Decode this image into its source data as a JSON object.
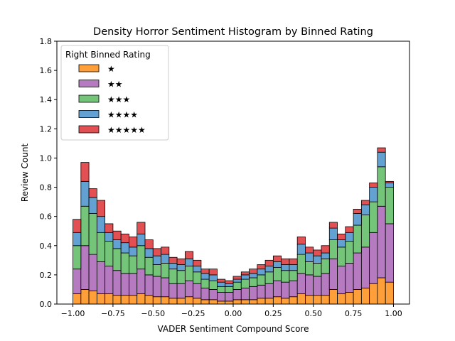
{
  "chart_data": {
    "type": "bar",
    "stacked": true,
    "title": "Density Horror Sentiment Histogram by Binned Rating",
    "xlabel": "VADER Sentiment Compound Score",
    "ylabel": "Review Count",
    "xlim": [
      -1.1,
      1.1
    ],
    "ylim": [
      0,
      1.8
    ],
    "xticks": [
      -1.0,
      -0.75,
      -0.5,
      -0.25,
      0.0,
      0.25,
      0.5,
      0.75,
      1.0
    ],
    "xtick_labels": [
      "−1.00",
      "−0.75",
      "−0.50",
      "−0.25",
      "0.00",
      "0.25",
      "0.50",
      "0.75",
      "1.00"
    ],
    "yticks": [
      0.0,
      0.2,
      0.4,
      0.6,
      0.8,
      1.0,
      1.2,
      1.4,
      1.6,
      1.8
    ],
    "ytick_labels": [
      "0.0",
      "0.2",
      "0.4",
      "0.6",
      "0.8",
      "1.0",
      "1.2",
      "1.4",
      "1.6",
      "1.8"
    ],
    "legend": {
      "title": "Right Binned Rating",
      "placement": "upper-left"
    },
    "bins": {
      "start": -1.0,
      "width": 0.05,
      "centers": [
        -0.975,
        -0.925,
        -0.875,
        -0.825,
        -0.775,
        -0.725,
        -0.675,
        -0.625,
        -0.575,
        -0.525,
        -0.475,
        -0.425,
        -0.375,
        -0.325,
        -0.275,
        -0.225,
        -0.175,
        -0.125,
        -0.075,
        -0.025,
        0.025,
        0.075,
        0.125,
        0.175,
        0.225,
        0.275,
        0.325,
        0.375,
        0.425,
        0.475,
        0.525,
        0.575,
        0.625,
        0.675,
        0.725,
        0.775,
        0.825,
        0.875,
        0.925,
        0.975
      ]
    },
    "series": [
      {
        "name": "★",
        "color": "#ff9f3a",
        "values": [
          0.07,
          0.1,
          0.09,
          0.07,
          0.07,
          0.06,
          0.06,
          0.06,
          0.07,
          0.06,
          0.05,
          0.05,
          0.04,
          0.04,
          0.05,
          0.04,
          0.03,
          0.03,
          0.02,
          0.02,
          0.03,
          0.03,
          0.03,
          0.04,
          0.04,
          0.05,
          0.04,
          0.05,
          0.07,
          0.06,
          0.06,
          0.06,
          0.1,
          0.07,
          0.08,
          0.1,
          0.11,
          0.14,
          0.18,
          0.15
        ]
      },
      {
        "name": "★★",
        "color": "#b57ac0",
        "values": [
          0.17,
          0.3,
          0.25,
          0.22,
          0.19,
          0.17,
          0.15,
          0.15,
          0.17,
          0.14,
          0.14,
          0.13,
          0.1,
          0.1,
          0.11,
          0.1,
          0.08,
          0.07,
          0.06,
          0.06,
          0.07,
          0.08,
          0.09,
          0.09,
          0.1,
          0.11,
          0.11,
          0.11,
          0.14,
          0.14,
          0.13,
          0.15,
          0.21,
          0.19,
          0.2,
          0.25,
          0.28,
          0.35,
          0.49,
          0.4
        ]
      },
      {
        "name": "★★★",
        "color": "#74c47a",
        "values": [
          0.16,
          0.27,
          0.28,
          0.2,
          0.17,
          0.15,
          0.14,
          0.12,
          0.16,
          0.12,
          0.08,
          0.1,
          0.1,
          0.09,
          0.1,
          0.08,
          0.06,
          0.06,
          0.04,
          0.04,
          0.05,
          0.06,
          0.06,
          0.07,
          0.08,
          0.09,
          0.08,
          0.07,
          0.13,
          0.09,
          0.09,
          0.1,
          0.13,
          0.13,
          0.15,
          0.19,
          0.22,
          0.21,
          0.27,
          0.25
        ]
      },
      {
        "name": "★★★★",
        "color": "#62a1d1",
        "values": [
          0.09,
          0.17,
          0.11,
          0.11,
          0.06,
          0.06,
          0.07,
          0.06,
          0.08,
          0.06,
          0.06,
          0.06,
          0.04,
          0.04,
          0.05,
          0.04,
          0.04,
          0.04,
          0.03,
          0.02,
          0.02,
          0.03,
          0.03,
          0.04,
          0.04,
          0.04,
          0.04,
          0.04,
          0.07,
          0.06,
          0.05,
          0.04,
          0.08,
          0.05,
          0.06,
          0.08,
          0.07,
          0.1,
          0.1,
          0.03
        ]
      },
      {
        "name": "★★★★★",
        "color": "#e35053",
        "values": [
          0.09,
          0.13,
          0.06,
          0.11,
          0.06,
          0.06,
          0.06,
          0.07,
          0.08,
          0.06,
          0.05,
          0.05,
          0.04,
          0.04,
          0.05,
          0.04,
          0.03,
          0.04,
          0.02,
          0.02,
          0.02,
          0.02,
          0.03,
          0.03,
          0.04,
          0.04,
          0.04,
          0.04,
          0.05,
          0.04,
          0.04,
          0.05,
          0.04,
          0.04,
          0.04,
          0.03,
          0.03,
          0.03,
          0.03,
          0.01
        ]
      }
    ]
  }
}
